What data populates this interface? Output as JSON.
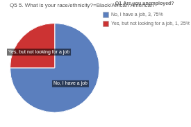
{
  "chart_data": {
    "type": "pie",
    "title": "Q5 5. What is your race/ethnicity?=Black/African American",
    "legend_title": "Q1 Are you unemployed?",
    "categories": [
      "No, I have a job",
      "Yes, but not looking for a job"
    ],
    "values": [
      3,
      1
    ],
    "colors": [
      "#5b7fbe",
      "#cc3333"
    ],
    "legend_entries": [
      "No, I have a job, 3, 75%",
      "Yes, but not looking for a job, 1, 25%"
    ],
    "legend": "right"
  }
}
